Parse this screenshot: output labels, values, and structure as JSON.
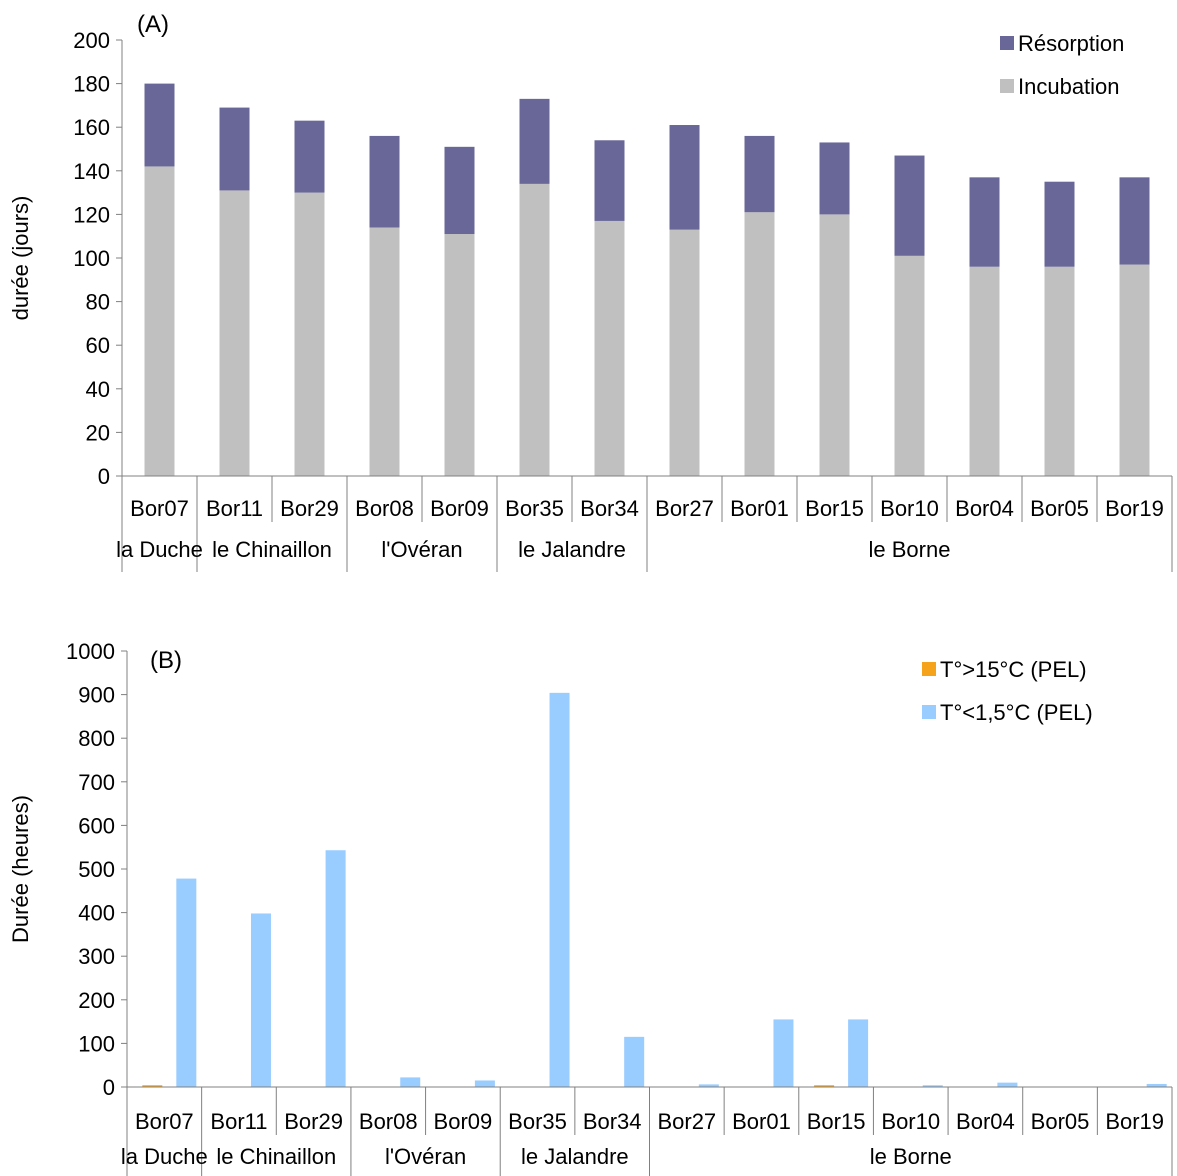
{
  "chart_data": [
    {
      "type": "bar",
      "stacked": true,
      "panel_label": "(A)",
      "title": "",
      "xlabel": "",
      "ylabel": "durée (jours)",
      "ylim": [
        0,
        200
      ],
      "yticks": [
        0,
        20,
        40,
        60,
        80,
        100,
        120,
        140,
        160,
        180,
        200
      ],
      "categories": [
        "Bor07",
        "Bor11",
        "Bor29",
        "Bor08",
        "Bor09",
        "Bor35",
        "Bor34",
        "Bor27",
        "Bor01",
        "Bor15",
        "Bor10",
        "Bor04",
        "Bor05",
        "Bor19"
      ],
      "groups": [
        {
          "label": "la Duche",
          "count": 1
        },
        {
          "label": "le Chinaillon",
          "count": 2
        },
        {
          "label": "l'Ovéran",
          "count": 2
        },
        {
          "label": "le Jalandre",
          "count": 2
        },
        {
          "label": "le Borne",
          "count": 7
        }
      ],
      "legend_position": "top-right",
      "grid": false,
      "series": [
        {
          "name": "Incubation",
          "color": "#c0c0c0",
          "values": [
            142,
            131,
            130,
            114,
            111,
            134,
            117,
            113,
            121,
            120,
            101,
            96,
            96,
            97
          ]
        },
        {
          "name": "Résorption",
          "color": "#686798",
          "values": [
            38,
            38,
            33,
            42,
            40,
            39,
            37,
            48,
            35,
            33,
            46,
            41,
            39,
            40
          ]
        }
      ],
      "legend_order": [
        "Résorption",
        "Incubation"
      ]
    },
    {
      "type": "bar",
      "stacked": false,
      "panel_label": "(B)",
      "title": "",
      "xlabel": "",
      "ylabel": "Durée (heures)",
      "ylim": [
        0,
        1000
      ],
      "yticks": [
        0,
        100,
        200,
        300,
        400,
        500,
        600,
        700,
        800,
        900,
        1000
      ],
      "categories": [
        "Bor07",
        "Bor11",
        "Bor29",
        "Bor08",
        "Bor09",
        "Bor35",
        "Bor34",
        "Bor27",
        "Bor01",
        "Bor15",
        "Bor10",
        "Bor04",
        "Bor05",
        "Bor19"
      ],
      "groups": [
        {
          "label": "la Duche",
          "count": 1
        },
        {
          "label": "le Chinaillon",
          "count": 2
        },
        {
          "label": "l'Ovéran",
          "count": 2
        },
        {
          "label": "le Jalandre",
          "count": 2
        },
        {
          "label": "le Borne",
          "count": 7
        }
      ],
      "legend_position": "top-right",
      "grid": false,
      "series": [
        {
          "name": "T°>15°C (PEL)",
          "color": "#f5a31a",
          "values": [
            4,
            0,
            0,
            0,
            0,
            0,
            0,
            0,
            0,
            4,
            0,
            0,
            0,
            0
          ]
        },
        {
          "name": "T°<1,5°C (PEL)",
          "color": "#99ccff",
          "values": [
            478,
            398,
            543,
            22,
            15,
            904,
            115,
            6,
            155,
            155,
            4,
            10,
            0,
            7
          ]
        }
      ],
      "legend_order": [
        "T°>15°C (PEL)",
        "T°<1,5°C (PEL)"
      ]
    }
  ]
}
